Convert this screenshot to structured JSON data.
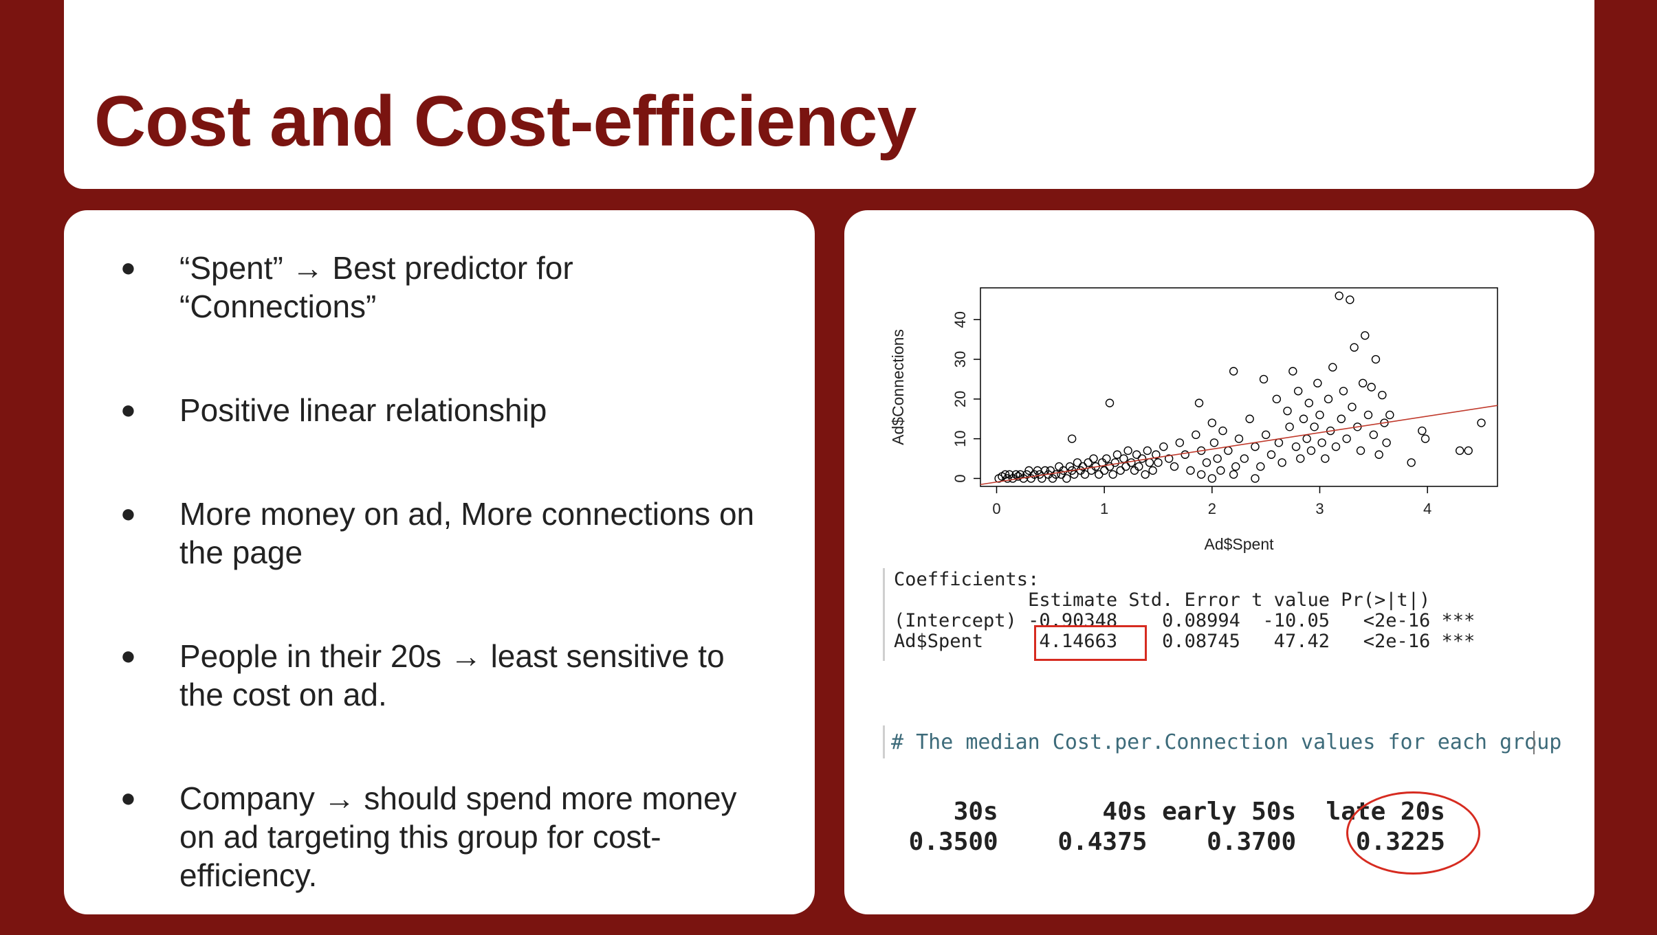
{
  "slide": {
    "title": "Cost and Cost-efficiency",
    "accent_color": "#7a1410"
  },
  "bullets": [
    {
      "text": "“Spent” → Best predictor for “Connections”"
    },
    {
      "text": "Positive linear relationship"
    },
    {
      "text": "More money on ad, More connections on the page"
    },
    {
      "text": "People in their 20s → least sensitive to the cost on ad."
    },
    {
      "text": "Company → should spend more money on ad targeting this group for cost-efficiency."
    }
  ],
  "chart_data": {
    "type": "scatter",
    "xlabel": "Ad$Spent",
    "ylabel": "Ad$Connections",
    "xlim": [
      -0.15,
      4.65
    ],
    "ylim": [
      -2,
      48
    ],
    "x_ticks": [
      0,
      1,
      2,
      3,
      4
    ],
    "y_ticks": [
      0,
      10,
      20,
      30,
      40
    ],
    "grid": false,
    "point_color": "#000000",
    "regression_line": {
      "intercept": -0.90348,
      "slope": 4.14663,
      "color": "#c0392b"
    },
    "points": [
      [
        0.02,
        0
      ],
      [
        0.05,
        0.5
      ],
      [
        0.08,
        1
      ],
      [
        0.1,
        0
      ],
      [
        0.12,
        1
      ],
      [
        0.15,
        0
      ],
      [
        0.18,
        1
      ],
      [
        0.2,
        0.5
      ],
      [
        0.22,
        1
      ],
      [
        0.25,
        0
      ],
      [
        0.28,
        1
      ],
      [
        0.3,
        2
      ],
      [
        0.32,
        0
      ],
      [
        0.35,
        1
      ],
      [
        0.38,
        2
      ],
      [
        0.4,
        1
      ],
      [
        0.42,
        0
      ],
      [
        0.45,
        2
      ],
      [
        0.48,
        1
      ],
      [
        0.5,
        2
      ],
      [
        0.52,
        0
      ],
      [
        0.55,
        1
      ],
      [
        0.58,
        3
      ],
      [
        0.6,
        1
      ],
      [
        0.62,
        2
      ],
      [
        0.65,
        0
      ],
      [
        0.68,
        3
      ],
      [
        0.7,
        2
      ],
      [
        0.72,
        1
      ],
      [
        0.75,
        4
      ],
      [
        0.78,
        2
      ],
      [
        0.8,
        3
      ],
      [
        0.82,
        1
      ],
      [
        0.85,
        4
      ],
      [
        0.88,
        2
      ],
      [
        0.9,
        5
      ],
      [
        0.92,
        3
      ],
      [
        0.95,
        1
      ],
      [
        0.98,
        4
      ],
      [
        1.0,
        2
      ],
      [
        1.02,
        5
      ],
      [
        1.05,
        3
      ],
      [
        1.08,
        1
      ],
      [
        1.1,
        4
      ],
      [
        1.12,
        6
      ],
      [
        1.15,
        2
      ],
      [
        1.18,
        5
      ],
      [
        1.2,
        3
      ],
      [
        1.22,
        7
      ],
      [
        1.25,
        4
      ],
      [
        1.28,
        2
      ],
      [
        1.3,
        6
      ],
      [
        1.32,
        3
      ],
      [
        1.35,
        5
      ],
      [
        1.38,
        1
      ],
      [
        1.4,
        7
      ],
      [
        1.42,
        4
      ],
      [
        1.45,
        2
      ],
      [
        1.48,
        6
      ],
      [
        1.5,
        4
      ],
      [
        0.7,
        10
      ],
      [
        1.05,
        19
      ],
      [
        1.55,
        8
      ],
      [
        1.6,
        5
      ],
      [
        1.65,
        3
      ],
      [
        1.7,
        9
      ],
      [
        1.75,
        6
      ],
      [
        1.8,
        2
      ],
      [
        1.85,
        11
      ],
      [
        1.88,
        19
      ],
      [
        1.9,
        7
      ],
      [
        1.95,
        4
      ],
      [
        2.0,
        14
      ],
      [
        2.02,
        9
      ],
      [
        2.05,
        5
      ],
      [
        2.08,
        2
      ],
      [
        2.1,
        12
      ],
      [
        2.15,
        7
      ],
      [
        2.2,
        27
      ],
      [
        2.22,
        3
      ],
      [
        2.25,
        10
      ],
      [
        2.3,
        5
      ],
      [
        2.35,
        15
      ],
      [
        2.4,
        8
      ],
      [
        2.45,
        3
      ],
      [
        2.48,
        25
      ],
      [
        2.5,
        11
      ],
      [
        2.55,
        6
      ],
      [
        2.6,
        20
      ],
      [
        2.62,
        9
      ],
      [
        2.65,
        4
      ],
      [
        2.7,
        17
      ],
      [
        2.72,
        13
      ],
      [
        2.75,
        27
      ],
      [
        2.78,
        8
      ],
      [
        2.8,
        22
      ],
      [
        2.82,
        5
      ],
      [
        2.85,
        15
      ],
      [
        2.88,
        10
      ],
      [
        2.9,
        19
      ],
      [
        2.92,
        7
      ],
      [
        2.95,
        13
      ],
      [
        2.98,
        24
      ],
      [
        3.0,
        16
      ],
      [
        3.02,
        9
      ],
      [
        3.05,
        5
      ],
      [
        3.08,
        20
      ],
      [
        3.1,
        12
      ],
      [
        3.12,
        28
      ],
      [
        3.15,
        8
      ],
      [
        3.18,
        46
      ],
      [
        3.2,
        15
      ],
      [
        3.22,
        22
      ],
      [
        3.25,
        10
      ],
      [
        3.28,
        45
      ],
      [
        3.3,
        18
      ],
      [
        3.32,
        33
      ],
      [
        3.35,
        13
      ],
      [
        3.38,
        7
      ],
      [
        3.4,
        24
      ],
      [
        3.42,
        36
      ],
      [
        3.45,
        16
      ],
      [
        3.48,
        23
      ],
      [
        3.5,
        11
      ],
      [
        3.52,
        30
      ],
      [
        3.55,
        6
      ],
      [
        3.58,
        21
      ],
      [
        3.6,
        14
      ],
      [
        3.62,
        9
      ],
      [
        3.65,
        16
      ],
      [
        3.95,
        12
      ],
      [
        3.98,
        10
      ],
      [
        3.85,
        4
      ],
      [
        4.3,
        7
      ],
      [
        4.38,
        7
      ],
      [
        4.5,
        14
      ],
      [
        2.0,
        0
      ],
      [
        2.2,
        1
      ],
      [
        2.4,
        0
      ],
      [
        1.9,
        1
      ]
    ]
  },
  "coefficients": {
    "heading": "Coefficients:",
    "header": "            Estimate Std. Error t value Pr(>|t|)",
    "rows": [
      "(Intercept) -0.90348    0.08994  -10.05   <2e-16 ***",
      "Ad$Spent     4.14663    0.08745   47.42   <2e-16 ***"
    ],
    "highlight_value": "4.14663"
  },
  "median": {
    "comment": "# The median Cost.per.Connection values for each group",
    "groups_line": "    30s       40s early 50s  late 20s",
    "values_line": " 0.3500    0.4375    0.3700    0.3225",
    "highlight_value": "0.3225"
  }
}
